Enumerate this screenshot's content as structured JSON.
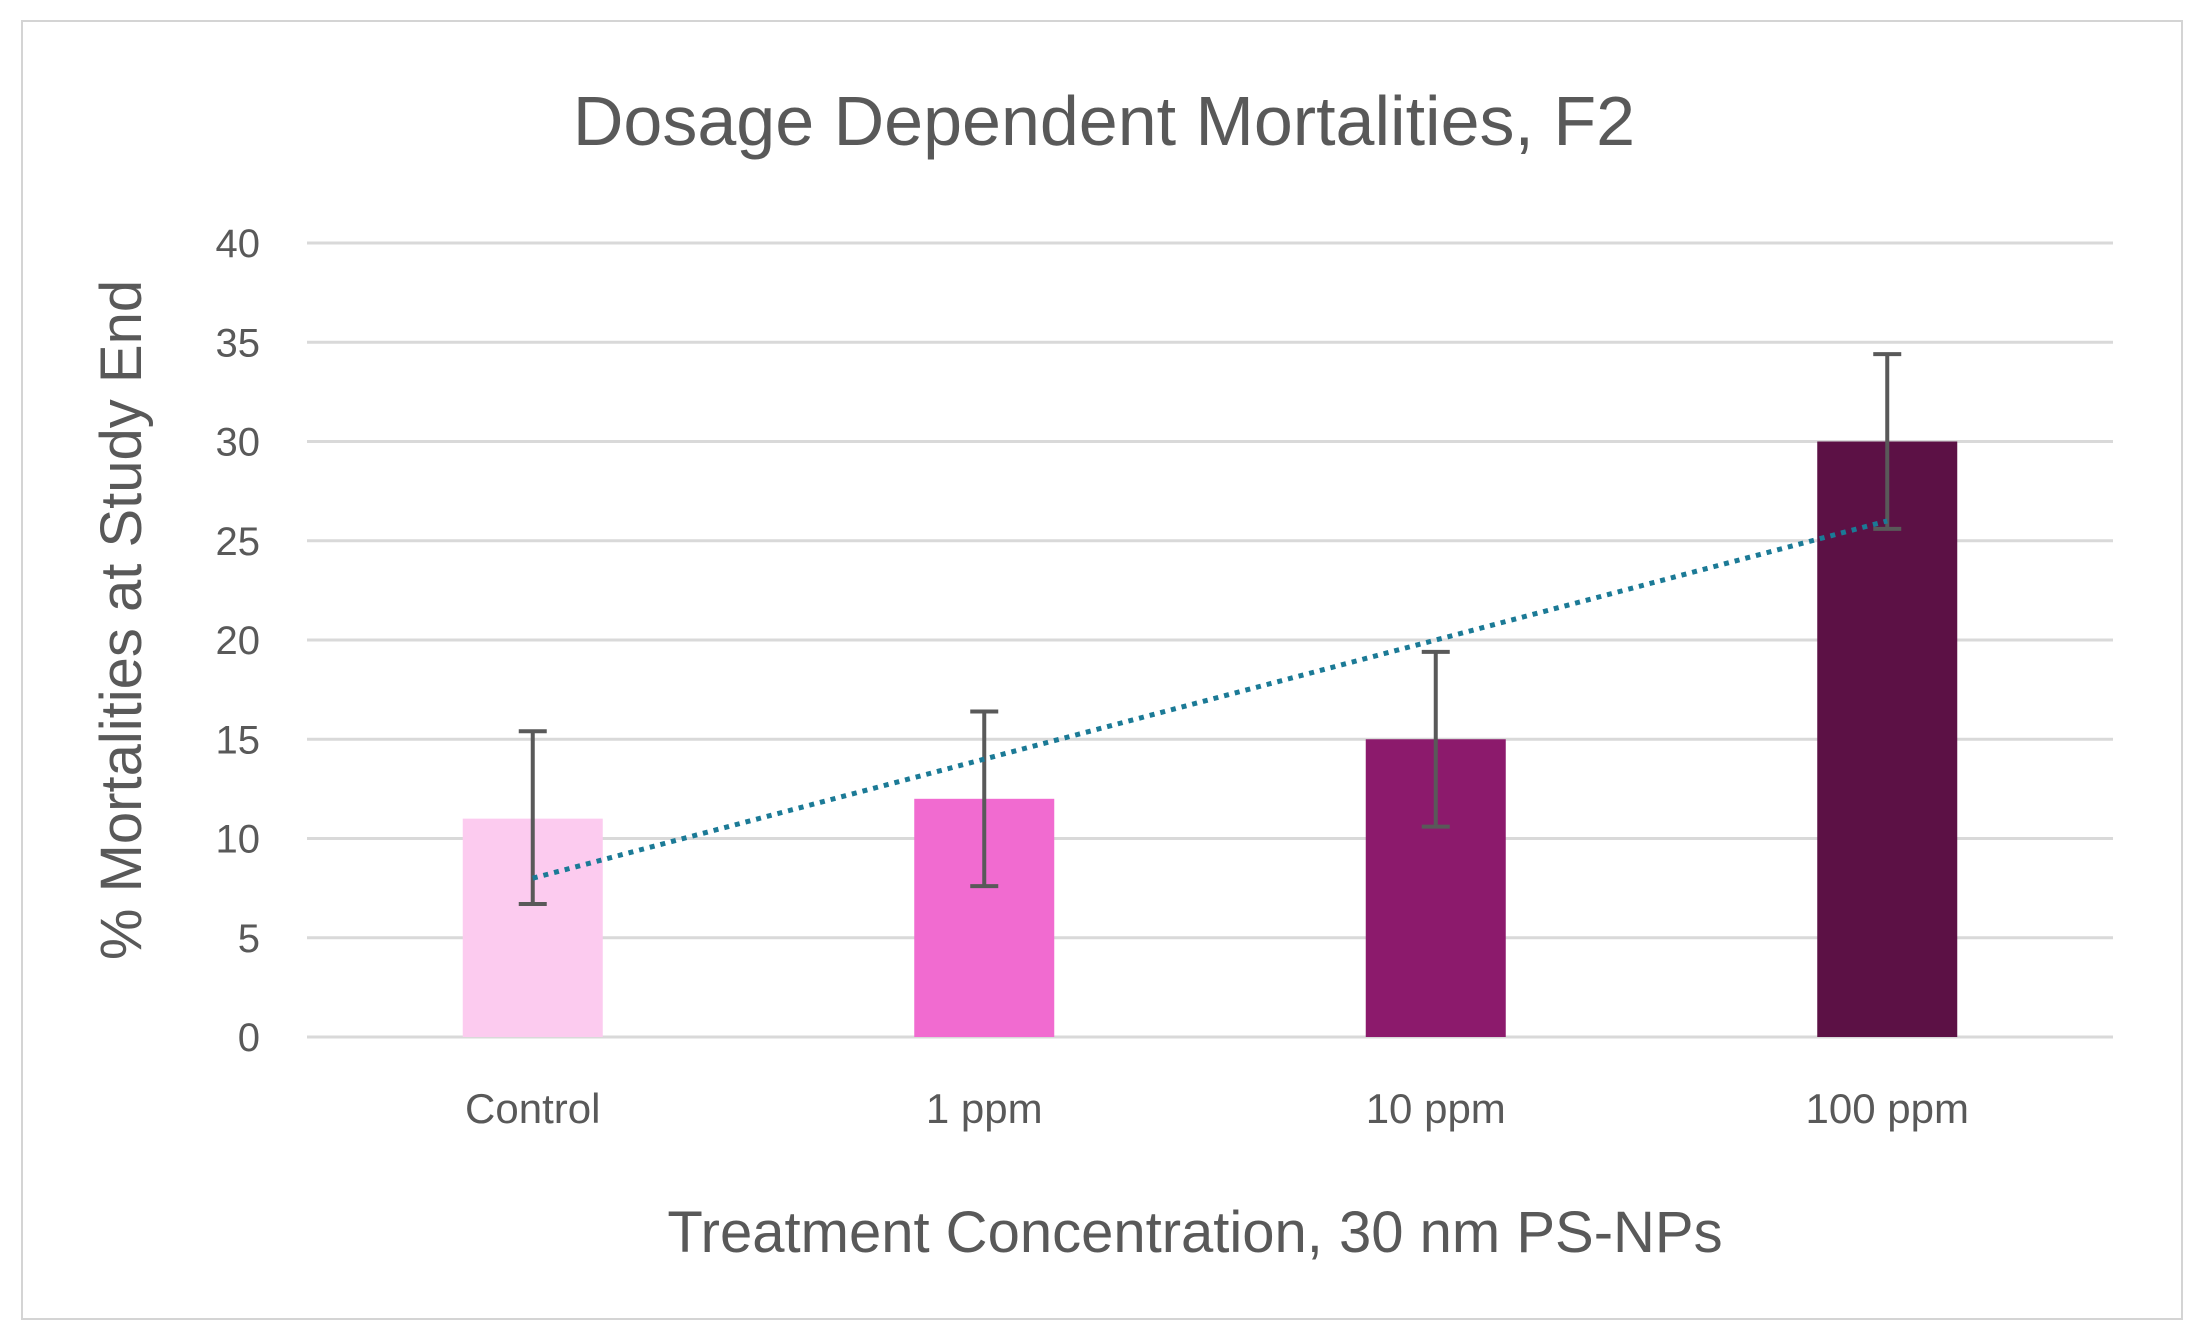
{
  "chart_data": {
    "type": "bar",
    "title": "Dosage Dependent Mortalities, F2",
    "xlabel": "Treatment Concentration, 30 nm PS-NPs",
    "ylabel": "% Mortalities at Study End",
    "ylim": [
      0,
      40
    ],
    "yticks": [
      0,
      5,
      10,
      15,
      20,
      25,
      30,
      35,
      40
    ],
    "grid": true,
    "categories": [
      "Control",
      "1 ppm",
      "10 ppm",
      "100 ppm"
    ],
    "values": [
      11,
      12,
      15,
      30
    ],
    "error_bars": [
      {
        "low": 6.7,
        "high": 15.4
      },
      {
        "low": 7.6,
        "high": 16.4
      },
      {
        "low": 10.6,
        "high": 19.4
      },
      {
        "low": 25.6,
        "high": 34.4
      }
    ],
    "bar_colors": [
      "#fccbef",
      "#f16bd0",
      "#8c1a6c",
      "#5c1145"
    ],
    "trendline": {
      "type": "linear",
      "style": "dotted",
      "color": "#1b7a96",
      "start": 8,
      "end": 26
    }
  }
}
